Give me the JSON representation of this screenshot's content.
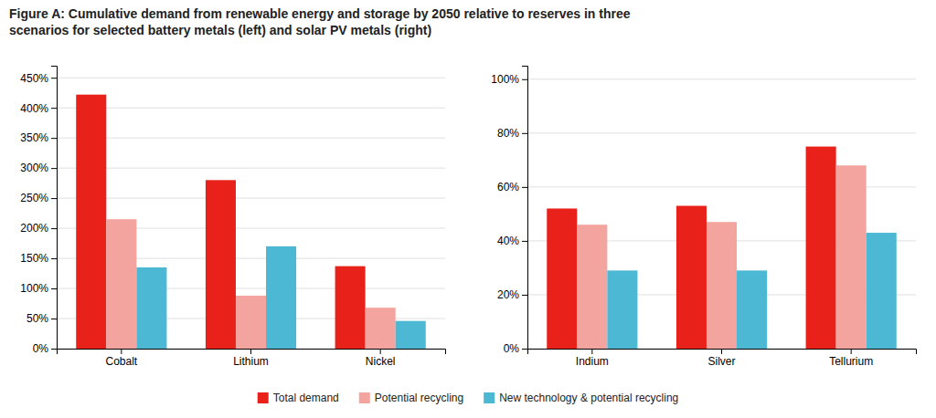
{
  "chart_data": [
    {
      "type": "bar",
      "title": "Figure A: Cumulative demand from renewable energy and storage by 2050 relative to reserves in three\nscenarios for selected battery metals (left) and solar PV metals (right)",
      "categories": [
        "Cobalt",
        "Lithium",
        "Nickel"
      ],
      "series": [
        {
          "name": "Total demand",
          "color": "#e8221a",
          "values": [
            4.22,
            2.8,
            1.37
          ]
        },
        {
          "name": "Potential recycling",
          "color": "#f4a49e",
          "values": [
            2.15,
            0.88,
            0.68
          ]
        },
        {
          "name": "New technology & potential recycling",
          "color": "#4db8d4",
          "values": [
            1.35,
            1.7,
            0.46
          ]
        }
      ],
      "ylim": [
        0,
        4.7
      ],
      "yticks": [
        {
          "value": 0,
          "label": "0%"
        },
        {
          "value": 0.5,
          "label": "50%"
        },
        {
          "value": 1.0,
          "label": "100%"
        },
        {
          "value": 1.5,
          "label": "150%"
        },
        {
          "value": 2.0,
          "label": "200%"
        },
        {
          "value": 2.5,
          "label": "250%"
        },
        {
          "value": 3.0,
          "label": "300%"
        },
        {
          "value": 3.5,
          "label": "350%"
        },
        {
          "value": 4.0,
          "label": "400%"
        },
        {
          "value": 4.5,
          "label": "450%"
        }
      ],
      "grid": true,
      "legend": "bottom"
    },
    {
      "type": "bar",
      "categories": [
        "Indium",
        "Silver",
        "Tellurium"
      ],
      "series": [
        {
          "name": "Total demand",
          "color": "#e8221a",
          "values": [
            0.52,
            0.53,
            0.75
          ]
        },
        {
          "name": "Potential recycling",
          "color": "#f4a49e",
          "values": [
            0.46,
            0.47,
            0.68
          ]
        },
        {
          "name": "New technology & potential recycling",
          "color": "#4db8d4",
          "values": [
            0.29,
            0.29,
            0.43
          ]
        }
      ],
      "ylim": [
        0,
        1.05
      ],
      "yticks": [
        {
          "value": 0,
          "label": "0%"
        },
        {
          "value": 0.2,
          "label": "20%"
        },
        {
          "value": 0.4,
          "label": "40%"
        },
        {
          "value": 0.6,
          "label": "60%"
        },
        {
          "value": 0.8,
          "label": "80%"
        },
        {
          "value": 1.0,
          "label": "100%"
        }
      ],
      "grid": true
    }
  ]
}
